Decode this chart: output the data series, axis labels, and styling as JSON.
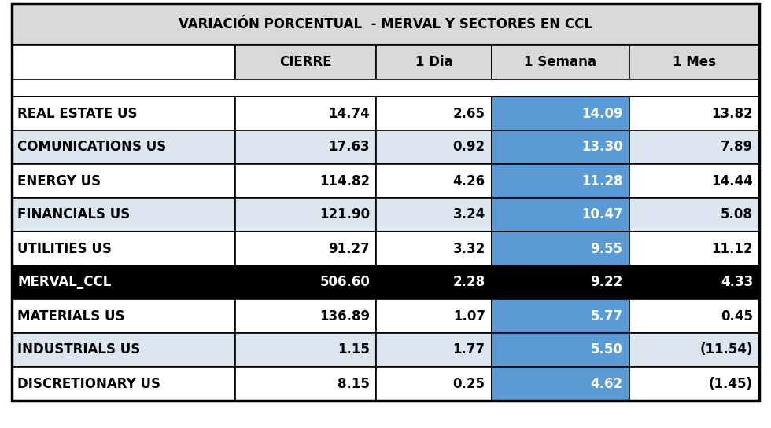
{
  "title": "VARIACIÓN PORCENTUAL  - MERVAL Y SECTORES EN CCL",
  "columns": [
    "",
    "CIERRE",
    "1 Dia",
    "1 Semana",
    "1 Mes"
  ],
  "rows": [
    {
      "name": "REAL ESTATE US",
      "cierre": "14.74",
      "dia": "2.65",
      "semana": "14.09",
      "mes": "13.82",
      "bold": true,
      "black_bg": false,
      "alt_row": false
    },
    {
      "name": "COMUNICATIONS US",
      "cierre": "17.63",
      "dia": "0.92",
      "semana": "13.30",
      "mes": "7.89",
      "bold": true,
      "black_bg": false,
      "alt_row": true
    },
    {
      "name": "ENERGY US",
      "cierre": "114.82",
      "dia": "4.26",
      "semana": "11.28",
      "mes": "14.44",
      "bold": true,
      "black_bg": false,
      "alt_row": false
    },
    {
      "name": "FINANCIALS US",
      "cierre": "121.90",
      "dia": "3.24",
      "semana": "10.47",
      "mes": "5.08",
      "bold": true,
      "black_bg": false,
      "alt_row": true
    },
    {
      "name": "UTILITIES US",
      "cierre": "91.27",
      "dia": "3.32",
      "semana": "9.55",
      "mes": "11.12",
      "bold": true,
      "black_bg": false,
      "alt_row": false
    },
    {
      "name": "MERVAL_CCL",
      "cierre": "506.60",
      "dia": "2.28",
      "semana": "9.22",
      "mes": "4.33",
      "bold": true,
      "black_bg": true,
      "alt_row": false
    },
    {
      "name": "MATERIALS US",
      "cierre": "136.89",
      "dia": "1.07",
      "semana": "5.77",
      "mes": "0.45",
      "bold": true,
      "black_bg": false,
      "alt_row": false
    },
    {
      "name": "INDUSTRIALS US",
      "cierre": "1.15",
      "dia": "1.77",
      "semana": "5.50",
      "mes": "(11.54)",
      "bold": true,
      "black_bg": false,
      "alt_row": true
    },
    {
      "name": "DISCRETIONARY US",
      "cierre": "8.15",
      "dia": "0.25",
      "semana": "4.62",
      "mes": "(1.45)",
      "bold": true,
      "black_bg": false,
      "alt_row": false
    }
  ],
  "color_title_bg": "#d9d9d9",
  "color_header_bg": "#d9d9d9",
  "color_header_name_bg": "#ffffff",
  "color_blue_highlight": "#5b9bd5",
  "color_alt_row": "#dce6f1",
  "color_white_row": "#ffffff",
  "color_black_bg": "#000000",
  "color_black_text": "#000000",
  "color_white_text": "#ffffff",
  "color_border": "#000000",
  "title_fontsize": 12,
  "header_fontsize": 12,
  "cell_fontsize": 12,
  "fig_width": 9.8,
  "fig_height": 5.45,
  "dpi": 100
}
